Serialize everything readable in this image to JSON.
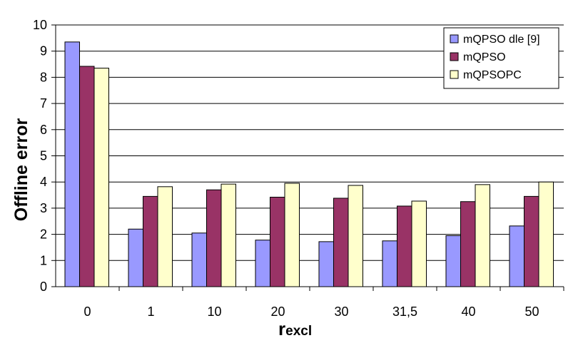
{
  "chart_data": {
    "type": "bar",
    "title": "",
    "xlabel": {
      "main": "r",
      "sub": "excl"
    },
    "ylabel": "Offline error",
    "ylim": [
      0,
      10
    ],
    "yticks": [
      0,
      1,
      2,
      3,
      4,
      5,
      6,
      7,
      8,
      9,
      10
    ],
    "categories": [
      "0",
      "1",
      "10",
      "20",
      "30",
      "31,5",
      "40",
      "50"
    ],
    "grid": true,
    "legend_position": "top-right",
    "series": [
      {
        "name": "mQPSO dle [9]",
        "color": "#9999ff",
        "values": [
          9.35,
          2.2,
          2.05,
          1.78,
          1.72,
          1.75,
          1.95,
          2.32
        ]
      },
      {
        "name": "mQPSO",
        "color": "#993366",
        "values": [
          8.42,
          3.45,
          3.7,
          3.42,
          3.38,
          3.08,
          3.25,
          3.45
        ]
      },
      {
        "name": "mQPSOPC",
        "color": "#ffffcc",
        "values": [
          8.35,
          3.82,
          3.92,
          3.95,
          3.87,
          3.27,
          3.9,
          4.0
        ]
      }
    ]
  }
}
